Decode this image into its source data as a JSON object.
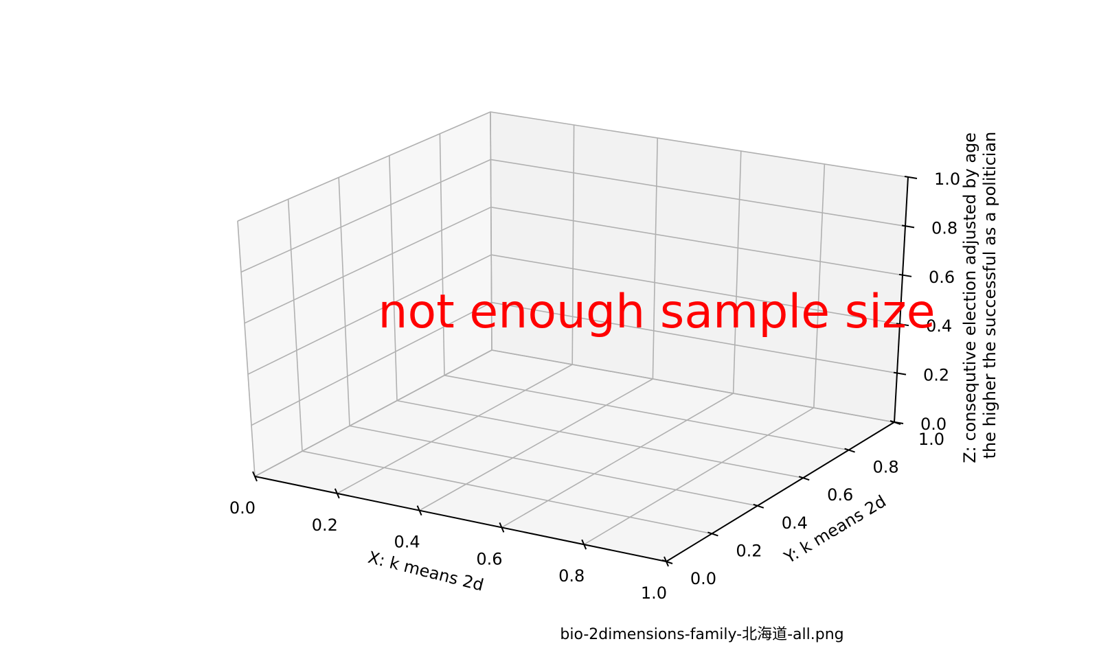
{
  "chart_data": {
    "type": "scatter",
    "projection": "3d",
    "points": [],
    "xlabel": "X: k means 2d",
    "ylabel": "Y: k means 2d",
    "zlabel_lines": [
      "Z: consequtive election adjusted by age",
      "the higher the successful as a politician"
    ],
    "xlim": [
      0,
      1
    ],
    "ylim": [
      0,
      1
    ],
    "zlim": [
      0,
      1
    ],
    "xticks": [
      "0.0",
      "0.2",
      "0.4",
      "0.6",
      "0.8",
      "1.0"
    ],
    "yticks": [
      "0.0",
      "0.2",
      "0.4",
      "0.6",
      "0.8",
      "1.0"
    ],
    "zticks": [
      "0.0",
      "0.2",
      "0.4",
      "0.6",
      "0.8",
      "1.0"
    ],
    "grid": true,
    "message": "not enough sample size",
    "message_color": "#ff0000"
  },
  "caption": "bio-2dimensions-family-北海道-all.png"
}
